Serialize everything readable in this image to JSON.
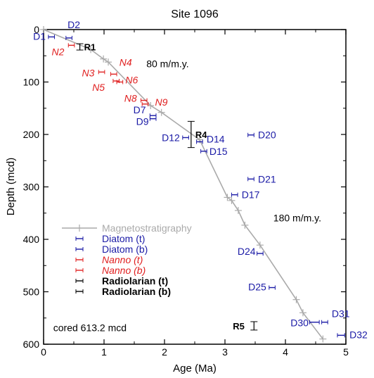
{
  "chart_data": {
    "type": "scatter",
    "title": "Site 1096",
    "xlabel": "Age (Ma)",
    "ylabel": "Depth (mcd)",
    "xlim": [
      0,
      5
    ],
    "ylim": [
      600,
      0
    ],
    "y_inverted": true,
    "x_ticks": [
      0,
      1,
      2,
      3,
      4,
      5
    ],
    "y_ticks": [
      0,
      100,
      200,
      300,
      400,
      500,
      600
    ],
    "grid": false,
    "legend_position": "center-left",
    "legend": [
      {
        "key": "magneto",
        "label": "Magnetostratigraphy",
        "color": "#aaaaaa",
        "italic": false,
        "bold": false
      },
      {
        "key": "diatom_t",
        "label": "Diatom (t)",
        "color": "#1a1aa6",
        "italic": false,
        "bold": false
      },
      {
        "key": "diatom_b",
        "label": "Diatom (b)",
        "color": "#1a1aa6",
        "italic": false,
        "bold": false
      },
      {
        "key": "nanno_t",
        "label": "Nanno (t)",
        "color": "#e02020",
        "italic": true,
        "bold": false
      },
      {
        "key": "nanno_b",
        "label": "Nanno (b)",
        "color": "#e02020",
        "italic": true,
        "bold": false
      },
      {
        "key": "rad_t",
        "label": "Radiolarian (t)",
        "color": "#000000",
        "italic": false,
        "bold": true
      },
      {
        "key": "rad_b",
        "label": "Radiolarian (b)",
        "color": "#000000",
        "italic": false,
        "bold": true
      }
    ],
    "series": [
      {
        "key": "magneto",
        "color": "#aaaaaa",
        "points": [
          {
            "x": 0.0,
            "y": 0
          },
          {
            "x": 0.78,
            "y": 38
          },
          {
            "x": 0.99,
            "y": 56
          },
          {
            "x": 1.07,
            "y": 62
          },
          {
            "x": 1.77,
            "y": 145
          },
          {
            "x": 1.95,
            "y": 158
          },
          {
            "x": 2.58,
            "y": 210
          },
          {
            "x": 3.04,
            "y": 320
          },
          {
            "x": 3.11,
            "y": 326
          },
          {
            "x": 3.22,
            "y": 345
          },
          {
            "x": 3.33,
            "y": 373
          },
          {
            "x": 3.58,
            "y": 411
          },
          {
            "x": 4.18,
            "y": 515
          },
          {
            "x": 4.29,
            "y": 540
          },
          {
            "x": 4.62,
            "y": 590
          }
        ]
      },
      {
        "key": "diatom",
        "color": "#1a1aa6",
        "markers": [
          {
            "label": "D1",
            "x": 0.13,
            "y": 14,
            "xerr": 0.05
          },
          {
            "label": "D2",
            "x": 0.42,
            "y": 16,
            "xerr": 0.05
          },
          {
            "label": "D7",
            "x": 1.81,
            "y": 164,
            "xerr": 0.05
          },
          {
            "label": "D9",
            "x": 1.81,
            "y": 170,
            "xerr": 0.05
          },
          {
            "label": "D12",
            "x": 2.35,
            "y": 206,
            "xerr": 0.05
          },
          {
            "label": "D14",
            "x": 2.58,
            "y": 214,
            "xerr": 0.05
          },
          {
            "label": "D15",
            "x": 2.65,
            "y": 232,
            "xerr": 0.05
          },
          {
            "label": "D20",
            "x": 3.43,
            "y": 201,
            "xerr": 0.05
          },
          {
            "label": "D21",
            "x": 3.43,
            "y": 285,
            "xerr": 0.05
          },
          {
            "label": "D17",
            "x": 3.16,
            "y": 315,
            "xerr": 0.05
          },
          {
            "label": "D24",
            "x": 3.58,
            "y": 427,
            "xerr": 0.05
          },
          {
            "label": "D25",
            "x": 3.78,
            "y": 492,
            "xerr": 0.05
          },
          {
            "label": "D30",
            "x": 4.48,
            "y": 558,
            "xerr": 0.08
          },
          {
            "label": "D31",
            "x": 4.65,
            "y": 558,
            "xerr": 0.05
          },
          {
            "label": "D32",
            "x": 4.92,
            "y": 583,
            "xerr": 0.06
          }
        ]
      },
      {
        "key": "nanno",
        "color": "#e02020",
        "markers": [
          {
            "label": "N2",
            "x": 0.46,
            "y": 30,
            "xerr": 0.05
          },
          {
            "label": "N3",
            "x": 0.96,
            "y": 81,
            "xerr": 0.05
          },
          {
            "label": "N4",
            "x": 1.16,
            "y": 85,
            "xerr": 0.05
          },
          {
            "label": "N5",
            "x": 1.2,
            "y": 98,
            "xerr": 0.05
          },
          {
            "label": "N6",
            "x": 1.26,
            "y": 100,
            "xerr": 0.05
          },
          {
            "label": "N8",
            "x": 1.66,
            "y": 135,
            "xerr": 0.05
          },
          {
            "label": "N9",
            "x": 1.68,
            "y": 142,
            "xerr": 0.05
          }
        ]
      },
      {
        "key": "radiolarian",
        "color": "#000000",
        "markers": [
          {
            "label": "R1",
            "x": 0.6,
            "y": 33,
            "yerr": 6
          },
          {
            "label": "R4",
            "x": 2.44,
            "y": 200,
            "yerr": 25
          },
          {
            "label": "R5",
            "x": 3.48,
            "y": 565,
            "yerr": 8
          }
        ]
      }
    ],
    "annotations": [
      {
        "text": "80 m/m.y.",
        "x": 1.7,
        "y": 72,
        "anchor": "start"
      },
      {
        "text": "180 m/m.y.",
        "x": 3.8,
        "y": 366,
        "anchor": "start"
      },
      {
        "text": "cored  613.2 mcd",
        "x": 0.16,
        "y": 575,
        "anchor": "start"
      }
    ]
  }
}
